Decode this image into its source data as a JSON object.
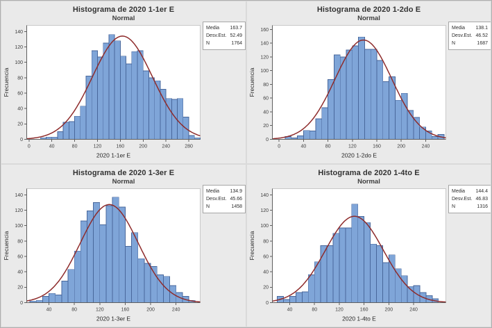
{
  "window": {
    "title": "Histogramas 2020"
  },
  "colors": {
    "figure_bg": "#e9e9e9",
    "panel_bg": "#eaeaea",
    "plot_bg": "#ffffff",
    "frame": "#c9c9c9",
    "axis_line": "#5f5f5f",
    "tick_text": "#3d3d3d",
    "bar_fill": "#7fa5d8",
    "bar_stroke": "#48679b",
    "curve": "#8e2b2b",
    "stats_border": "#a6a6a6"
  },
  "chart_data": [
    {
      "type": "bar",
      "title": "Histograma de 2020 1-1er E",
      "subtitle": "Normal",
      "xlabel": "2020 1-1er E",
      "ylabel": "Frecuencia",
      "fit": "normal",
      "legend_position": "none",
      "grid": false,
      "stats": {
        "media_label": "Media",
        "media": "163.7",
        "sd_label": "Desv.Est.",
        "sd": "52.49",
        "n_label": "N",
        "n": "1764"
      },
      "bin_width": 10,
      "bin_start": 20,
      "values": [
        2,
        3,
        3,
        10,
        22,
        23,
        30,
        43,
        82,
        115,
        107,
        125,
        136,
        128,
        108,
        98,
        114,
        115,
        89,
        80,
        76,
        65,
        53,
        52,
        53,
        29,
        5,
        2
      ],
      "x_ticks": [
        0,
        40,
        80,
        120,
        160,
        200,
        240,
        280
      ],
      "y_ticks": [
        0,
        20,
        40,
        60,
        80,
        100,
        120,
        140
      ],
      "xlim": [
        -4,
        300
      ],
      "ylim": [
        0,
        148
      ]
    },
    {
      "type": "bar",
      "title": "Histograma de 2020 1-2do E",
      "subtitle": "Normal",
      "xlabel": "2020 1-2do E",
      "ylabel": "Frecuencia",
      "fit": "normal",
      "legend_position": "none",
      "grid": false,
      "stats": {
        "media_label": "Media",
        "media": "138.1",
        "sd_label": "Desv.Est.",
        "sd": "46.52",
        "n_label": "N",
        "n": "1687"
      },
      "bin_width": 10,
      "bin_start": 10,
      "values": [
        4,
        2,
        5,
        13,
        12,
        30,
        46,
        87,
        123,
        120,
        130,
        136,
        149,
        131,
        131,
        115,
        84,
        91,
        57,
        67,
        42,
        32,
        18,
        12,
        4,
        7
      ],
      "x_ticks": [
        0,
        40,
        80,
        120,
        160,
        200,
        240
      ],
      "y_ticks": [
        0,
        20,
        40,
        60,
        80,
        100,
        120,
        140,
        160
      ],
      "xlim": [
        -11,
        273
      ],
      "ylim": [
        0,
        166
      ]
    },
    {
      "type": "bar",
      "title": "Histograma de 2020 1-3er E",
      "subtitle": "Normal",
      "xlabel": "2020 1-3er E",
      "ylabel": "Frecuencia",
      "fit": "normal",
      "legend_position": "none",
      "grid": false,
      "stats": {
        "media_label": "Media",
        "media": "134.9",
        "sd_label": "Desv.Est.",
        "sd": "45.66",
        "n_label": "N",
        "n": "1458"
      },
      "bin_width": 10,
      "bin_start": 10,
      "values": [
        2,
        3,
        8,
        12,
        10,
        28,
        43,
        67,
        106,
        119,
        130,
        101,
        126,
        137,
        124,
        73,
        91,
        57,
        51,
        47,
        36,
        34,
        22,
        13,
        8,
        3
      ],
      "x_ticks": [
        40,
        80,
        120,
        160,
        200,
        240
      ],
      "y_ticks": [
        0,
        20,
        40,
        60,
        80,
        100,
        120,
        140
      ],
      "xlim": [
        5,
        278
      ],
      "ylim": [
        0,
        148
      ]
    },
    {
      "type": "bar",
      "title": "Histograma de 2020 1-4to E",
      "subtitle": "Normal",
      "xlabel": "2020 1-4to E",
      "ylabel": "Frecuencia",
      "fit": "normal",
      "legend_position": "none",
      "grid": false,
      "stats": {
        "media_label": "Media",
        "media": "144.4",
        "sd_label": "Desv.Est.",
        "sd": "46.83",
        "n_label": "N",
        "n": "1316"
      },
      "bin_width": 10,
      "bin_start": 20,
      "values": [
        8,
        4,
        8,
        13,
        14,
        36,
        53,
        74,
        74,
        90,
        97,
        97,
        128,
        112,
        104,
        76,
        74,
        52,
        62,
        44,
        35,
        21,
        22,
        13,
        9,
        5
      ],
      "x_ticks": [
        40,
        80,
        120,
        160,
        200,
        240
      ],
      "y_ticks": [
        0,
        20,
        40,
        60,
        80,
        100,
        120,
        140
      ],
      "xlim": [
        12,
        292
      ],
      "ylim": [
        0,
        148
      ]
    }
  ]
}
